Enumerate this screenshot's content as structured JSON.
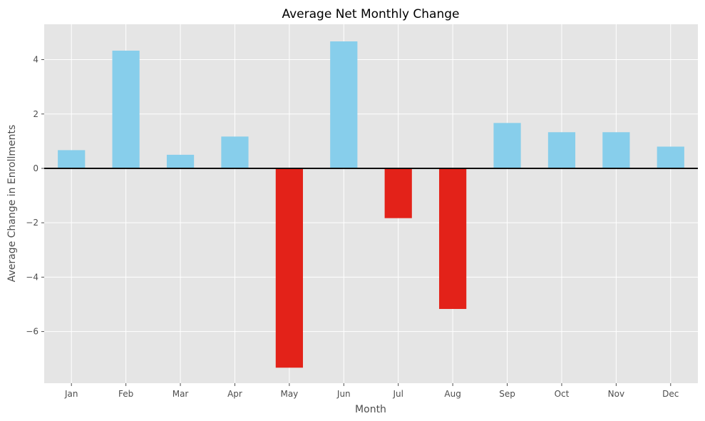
{
  "chart_data": {
    "type": "bar",
    "title": "Average Net Monthly Change",
    "xlabel": "Month",
    "ylabel": "Average Change in Enrollments",
    "categories": [
      "Jan",
      "Feb",
      "Mar",
      "Apr",
      "May",
      "Jun",
      "Jul",
      "Aug",
      "Sep",
      "Oct",
      "Nov",
      "Dec"
    ],
    "values": [
      0.67,
      4.33,
      0.5,
      1.17,
      -7.33,
      4.67,
      -1.83,
      -5.17,
      1.67,
      1.33,
      1.33,
      0.8
    ],
    "ylim": [
      -7.9,
      5.3
    ],
    "yticks": [
      -6,
      -4,
      -2,
      0,
      2,
      4
    ],
    "ytick_labels": [
      "−6",
      "−4",
      "−2",
      "0",
      "2",
      "4"
    ],
    "grid": true,
    "zero_line": true,
    "colors": {
      "positive": "#87ceeb",
      "negative": "#e32219",
      "background": "#e5e5e5",
      "grid": "#ffffff",
      "zero_line": "#000000"
    }
  }
}
